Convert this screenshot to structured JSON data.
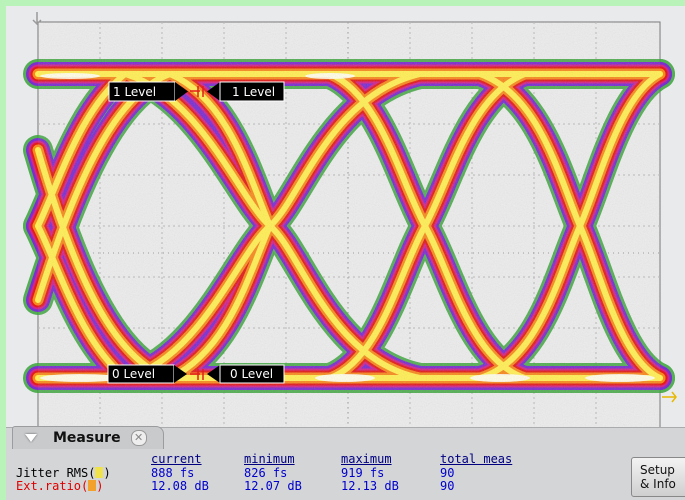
{
  "markers": {
    "one_level_left": "1 Level",
    "one_level_right": "1 Level",
    "zero_level_left": "0 Level",
    "zero_level_right": "0 Level"
  },
  "measure": {
    "title": "Measure",
    "columns": [
      "current",
      "minimum",
      "maximum",
      "total meas"
    ],
    "rows": [
      {
        "label": "Jitter RMS(",
        "close": ")",
        "current": "888 fs",
        "minimum": "826 fs",
        "maximum": "919 fs",
        "total": "90"
      },
      {
        "label": "Ext.ratio(",
        "close": ")",
        "current": "12.08 dB",
        "minimum": "12.07 dB",
        "maximum": "12.13 dB",
        "total": "90"
      }
    ],
    "setup_button": [
      "Setup",
      "& Info"
    ]
  },
  "colors": {
    "background": "#b9f3b9",
    "screen": "#e8eaec",
    "trace_outer": "#2a9a2a",
    "trace_mid": "#5533cc",
    "trace_hot": "#e21c1c",
    "trace_core": "#ffee55"
  }
}
